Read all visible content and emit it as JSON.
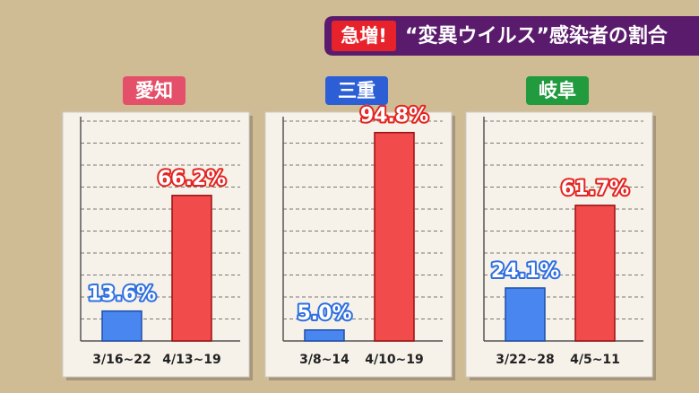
{
  "header": {
    "badge": "急増!",
    "title": "“変異ウイルス”感染者の割合"
  },
  "chart_data": [
    {
      "type": "bar",
      "title": "愛知",
      "title_color": "#e45069",
      "categories": [
        "3/16~22",
        "4/13~19"
      ],
      "values": [
        13.6,
        66.2
      ],
      "value_labels": [
        "13.6%",
        "66.2%"
      ],
      "colors": [
        "#4a86ef",
        "#f24b4b"
      ],
      "ylim": [
        0,
        100
      ],
      "yticks": [
        10,
        20,
        30,
        40,
        50,
        60,
        70,
        80,
        90,
        100
      ],
      "grid": true
    },
    {
      "type": "bar",
      "title": "三重",
      "title_color": "#2c5fd6",
      "categories": [
        "3/8~14",
        "4/10~19"
      ],
      "values": [
        5.0,
        94.8
      ],
      "value_labels": [
        "5.0%",
        "94.8%"
      ],
      "colors": [
        "#4a86ef",
        "#f24b4b"
      ],
      "ylim": [
        0,
        100
      ],
      "yticks": [
        10,
        20,
        30,
        40,
        50,
        60,
        70,
        80,
        90,
        100
      ],
      "grid": true
    },
    {
      "type": "bar",
      "title": "岐阜",
      "title_color": "#229a3e",
      "categories": [
        "3/22~28",
        "4/5~11"
      ],
      "values": [
        24.1,
        61.7
      ],
      "value_labels": [
        "24.1%",
        "61.7%"
      ],
      "colors": [
        "#4a86ef",
        "#f24b4b"
      ],
      "ylim": [
        0,
        100
      ],
      "yticks": [
        10,
        20,
        30,
        40,
        50,
        60,
        70,
        80,
        90,
        100
      ],
      "grid": true
    }
  ]
}
